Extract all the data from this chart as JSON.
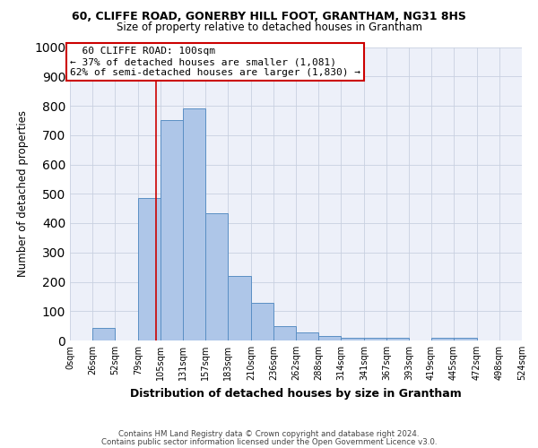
{
  "title1": "60, CLIFFE ROAD, GONERBY HILL FOOT, GRANTHAM, NG31 8HS",
  "title2": "Size of property relative to detached houses in Grantham",
  "xlabel": "Distribution of detached houses by size in Grantham",
  "ylabel": "Number of detached properties",
  "footnote1": "Contains HM Land Registry data © Crown copyright and database right 2024.",
  "footnote2": "Contains public sector information licensed under the Open Government Licence v3.0.",
  "bar_left_edges": [
    0,
    26,
    52,
    79,
    105,
    131,
    157,
    183,
    210,
    236,
    262,
    288,
    314,
    341,
    367,
    393,
    419,
    445,
    472,
    498
  ],
  "bar_heights": [
    0,
    44,
    0,
    487,
    750,
    790,
    435,
    220,
    128,
    50,
    28,
    15,
    10,
    10,
    8,
    0,
    8,
    8,
    0,
    0
  ],
  "bar_widths": [
    26,
    26,
    27,
    26,
    26,
    26,
    26,
    27,
    26,
    26,
    26,
    26,
    27,
    26,
    26,
    26,
    26,
    27,
    26,
    26
  ],
  "bar_color": "#aec6e8",
  "bar_edgecolor": "#5a8fc4",
  "grid_color": "#c8d0e0",
  "tick_labels": [
    "0sqm",
    "26sqm",
    "52sqm",
    "79sqm",
    "105sqm",
    "131sqm",
    "157sqm",
    "183sqm",
    "210sqm",
    "236sqm",
    "262sqm",
    "288sqm",
    "314sqm",
    "341sqm",
    "367sqm",
    "393sqm",
    "419sqm",
    "445sqm",
    "472sqm",
    "498sqm",
    "524sqm"
  ],
  "ylim": [
    0,
    1000
  ],
  "yticks": [
    0,
    100,
    200,
    300,
    400,
    500,
    600,
    700,
    800,
    900,
    1000
  ],
  "red_line_x": 100,
  "annotation_title": "60 CLIFFE ROAD: 100sqm",
  "annotation_line1": "← 37% of detached houses are smaller (1,081)",
  "annotation_line2": "62% of semi-detached houses are larger (1,830) →",
  "annotation_box_color": "#ffffff",
  "annotation_box_edgecolor": "#cc0000",
  "background_color": "#ffffff",
  "plot_bg_color": "#edf0f9"
}
